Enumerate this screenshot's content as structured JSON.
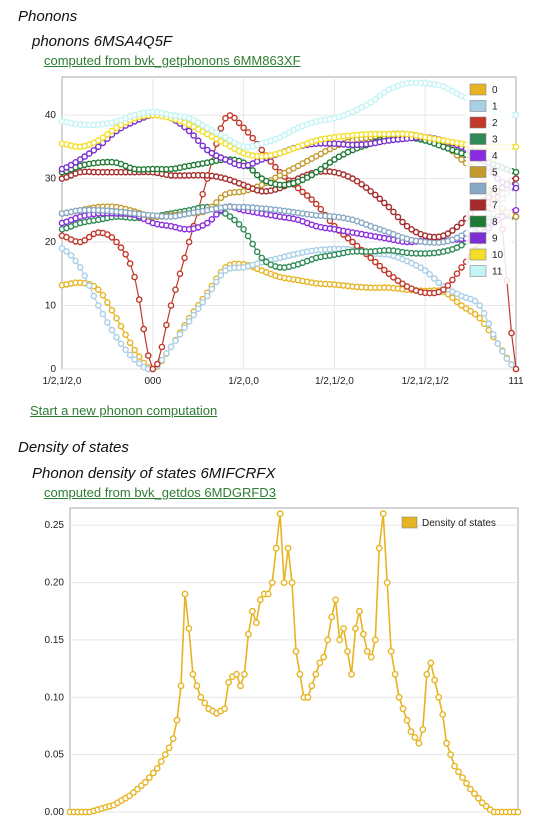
{
  "sections": {
    "phonons_heading": "Phonons",
    "dos_heading": "Density of states"
  },
  "phonon_chart": {
    "title": "phonons 6MSA4Q5F",
    "source_link": "computed from bvk_getphonons 6MM863XF"
  },
  "dos_chart": {
    "title": "Phonon density of states 6MIFCRFX",
    "source_link": "computed from bvk_getdos 6MDGRFD3"
  },
  "new_computation_link": "Start a new phonon computation",
  "chart_data": [
    {
      "type": "line",
      "title": "phonons 6MSA4Q5F",
      "x_tick_labels": [
        "1/2,1/2,0",
        "000",
        "1/2,0,0",
        "1/2,1/2,0",
        "1/2,1/2,1/2",
        "111"
      ],
      "ylim": [
        0,
        46
      ],
      "y_ticks": [
        0,
        10,
        20,
        30,
        40
      ],
      "legend_position": "top-right",
      "grid": true,
      "x_segments": 5,
      "series": [
        {
          "name": "0",
          "color": "#e6b422",
          "values": [
            13.2,
            13.6,
            12.5,
            8,
            3,
            0,
            3.5,
            8,
            12,
            16,
            16.5,
            15.5,
            14.5,
            14,
            13.5,
            13.3,
            13,
            12.8,
            12.8,
            12.5,
            12.3,
            12.2,
            10,
            8,
            4,
            0
          ]
        },
        {
          "name": "1",
          "color": "#a9cfe8",
          "values": [
            19,
            16,
            10,
            5,
            1.5,
            0,
            3.5,
            7.5,
            11.5,
            15.5,
            16,
            16.8,
            17.5,
            18.2,
            18.7,
            18.9,
            18.8,
            18.2,
            18,
            17,
            15.5,
            13,
            11.5,
            10,
            4,
            0
          ]
        },
        {
          "name": "2",
          "color": "#c0392b",
          "values": [
            21,
            20,
            21.5,
            20,
            14.5,
            0,
            10,
            20,
            30,
            39.5,
            38,
            34.5,
            31,
            28.5,
            26,
            22.5,
            20,
            17.5,
            15,
            13,
            12,
            12.5,
            16,
            20,
            27,
            0
          ]
        },
        {
          "name": "3",
          "color": "#2e8b57",
          "values": [
            22,
            23,
            23.5,
            24,
            23.8,
            24,
            24.5,
            25,
            25.5,
            24.5,
            22,
            17.5,
            16,
            16.5,
            17.5,
            18,
            18.5,
            18.5,
            18.7,
            18.3,
            18.2,
            18.5,
            19.5,
            22,
            24,
            24
          ]
        },
        {
          "name": "4",
          "color": "#8a2be2",
          "values": [
            23,
            24,
            24.5,
            24.5,
            24.3,
            23,
            22.5,
            22,
            23,
            25.5,
            25,
            24.5,
            24,
            23.5,
            22.5,
            22,
            21.5,
            21,
            20.5,
            20,
            20.2,
            20.2,
            20.5,
            21,
            23.5,
            25
          ]
        },
        {
          "name": "5",
          "color": "#c49a2e",
          "values": [
            24.5,
            25,
            25.5,
            25.5,
            24.8,
            24,
            24.2,
            24.5,
            25,
            27.5,
            28,
            29,
            30.5,
            32,
            33.5,
            35,
            36,
            36.5,
            37,
            37,
            36.5,
            35.5,
            33,
            30.5,
            26,
            24
          ]
        },
        {
          "name": "6",
          "color": "#87a9c4",
          "values": [
            24.5,
            25,
            25,
            24.8,
            24.5,
            24.2,
            24,
            24.5,
            25,
            25.5,
            25.5,
            25.3,
            25,
            24.6,
            24.2,
            24,
            23.5,
            22.5,
            21.5,
            20.5,
            20,
            20,
            21,
            23,
            26,
            29
          ]
        },
        {
          "name": "7",
          "color": "#a52a2a",
          "values": [
            30,
            31,
            31,
            31,
            31,
            31,
            30.5,
            30.5,
            30.5,
            30,
            29,
            28,
            28.5,
            30,
            31,
            31,
            30,
            28,
            25.5,
            22.5,
            21,
            21,
            23,
            26,
            28,
            30
          ]
        },
        {
          "name": "8",
          "color": "#1f7a35",
          "values": [
            31,
            32,
            32.5,
            32.5,
            31.5,
            31.5,
            31.5,
            32,
            32.5,
            33,
            32.5,
            30,
            29,
            29.5,
            31,
            33,
            34.5,
            35.5,
            36.5,
            36.5,
            36,
            35,
            34,
            33,
            32,
            31
          ]
        },
        {
          "name": "9",
          "color": "#7b2fcf",
          "values": [
            31.5,
            33,
            35,
            37.5,
            39,
            40,
            39.5,
            37.5,
            34.5,
            33,
            32,
            33,
            34,
            35,
            35.5,
            35.5,
            35.3,
            35.5,
            36,
            36.3,
            36.5,
            36,
            35,
            33.5,
            30,
            28.5
          ]
        },
        {
          "name": "10",
          "color": "#f3df2a",
          "values": [
            35.5,
            35,
            36,
            38,
            39.5,
            40,
            39.5,
            38.5,
            37,
            35.5,
            34,
            33.5,
            34,
            35,
            36,
            36.5,
            36.8,
            37,
            37,
            37,
            36.5,
            36,
            35.5,
            35,
            35,
            35
          ]
        },
        {
          "name": "11",
          "color": "#c4f4f6",
          "values": [
            39,
            38.5,
            38.5,
            39,
            40,
            40.5,
            40,
            39.5,
            38,
            36.5,
            35,
            35.5,
            36.5,
            38,
            39,
            39.5,
            40.5,
            42,
            44,
            45,
            45,
            44.5,
            43,
            42,
            40.5,
            40
          ]
        }
      ]
    },
    {
      "type": "line",
      "title": "Phonon density of states 6MIFCRFX",
      "ylim": [
        0,
        0.265
      ],
      "y_ticks": [
        0,
        0.05,
        0.1,
        0.15,
        0.2,
        0.25
      ],
      "y_tick_labels": [
        "0.00",
        "0.05",
        "0.10",
        "0.15",
        "0.20",
        "0.25"
      ],
      "legend_position": "top-right",
      "grid": true,
      "series": [
        {
          "name": "Density of states",
          "color": "#e6b422",
          "values": [
            0,
            0,
            0,
            0,
            0,
            0,
            0.001,
            0.002,
            0.003,
            0.004,
            0.005,
            0.006,
            0.008,
            0.01,
            0.012,
            0.014,
            0.017,
            0.02,
            0.023,
            0.026,
            0.03,
            0.034,
            0.038,
            0.044,
            0.05,
            0.056,
            0.064,
            0.08,
            0.11,
            0.19,
            0.16,
            0.12,
            0.11,
            0.1,
            0.095,
            0.09,
            0.088,
            0.086,
            0.088,
            0.09,
            0.113,
            0.118,
            0.12,
            0.11,
            0.12,
            0.155,
            0.175,
            0.165,
            0.185,
            0.19,
            0.19,
            0.2,
            0.23,
            0.26,
            0.2,
            0.23,
            0.2,
            0.14,
            0.12,
            0.1,
            0.1,
            0.11,
            0.12,
            0.13,
            0.135,
            0.15,
            0.17,
            0.185,
            0.15,
            0.16,
            0.14,
            0.12,
            0.16,
            0.175,
            0.155,
            0.14,
            0.135,
            0.15,
            0.23,
            0.26,
            0.2,
            0.14,
            0.12,
            0.1,
            0.09,
            0.08,
            0.07,
            0.065,
            0.06,
            0.072,
            0.12,
            0.13,
            0.115,
            0.1,
            0.085,
            0.06,
            0.05,
            0.04,
            0.035,
            0.03,
            0.025,
            0.02,
            0.016,
            0.012,
            0.008,
            0.005,
            0.002,
            0,
            0,
            0,
            0,
            0,
            0,
            0
          ]
        }
      ]
    }
  ]
}
